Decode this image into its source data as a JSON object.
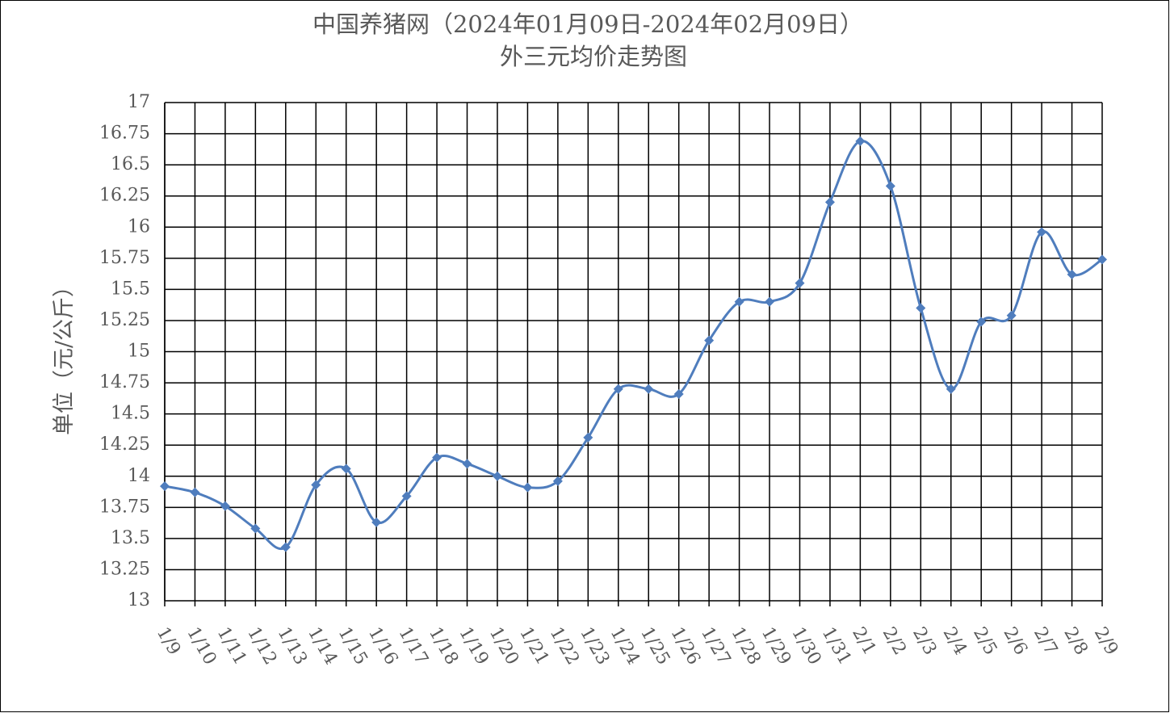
{
  "chart_data": {
    "type": "line",
    "title": "中国养猪网（2024年01月09日-2024年02月09日）",
    "subtitle": "外三元均价走势图",
    "y_label": "单位（元/公斤）",
    "categories": [
      "1/9",
      "1/10",
      "1/11",
      "1/12",
      "1/13",
      "1/14",
      "1/15",
      "1/16",
      "1/17",
      "1/18",
      "1/19",
      "1/20",
      "1/21",
      "1/22",
      "1/23",
      "1/24",
      "1/25",
      "1/26",
      "1/27",
      "1/28",
      "1/29",
      "1/30",
      "1/31",
      "2/1",
      "2/2",
      "2/3",
      "2/4",
      "2/5",
      "2/6",
      "2/7",
      "2/8",
      "2/9"
    ],
    "series": [
      {
        "name": "外三元均价",
        "color": "#4f7dbd",
        "values": [
          13.92,
          13.87,
          13.76,
          13.58,
          13.43,
          13.93,
          14.06,
          13.63,
          13.84,
          14.15,
          14.1,
          14.0,
          13.91,
          13.96,
          14.31,
          14.7,
          14.7,
          14.66,
          15.09,
          15.4,
          15.4,
          15.55,
          16.2,
          16.69,
          16.33,
          15.35,
          14.7,
          15.24,
          15.29,
          15.96,
          15.62,
          15.74
        ]
      }
    ],
    "ylim": [
      13,
      17
    ],
    "yticks": [
      13,
      13.25,
      13.5,
      13.75,
      14,
      14.25,
      14.5,
      14.75,
      15,
      15.25,
      15.5,
      15.75,
      16,
      16.25,
      16.5,
      16.75,
      17
    ],
    "grid": true
  }
}
